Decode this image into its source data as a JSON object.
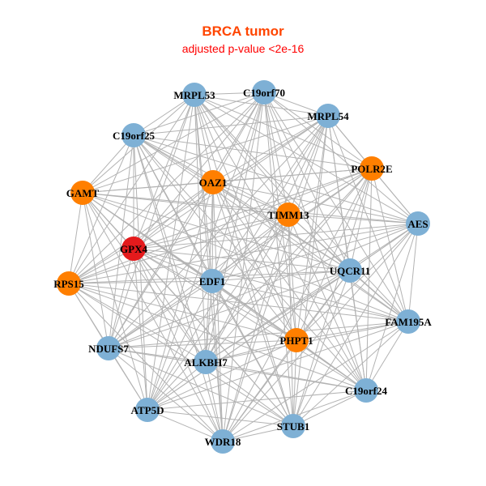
{
  "title": "BRCA tumor",
  "subtitle": "adjusted p-value <2e-16",
  "colors": {
    "title": "#FF4500",
    "subtitle": "#FF0000",
    "edge": "#B3B3B3",
    "blue": "#7EB0D5",
    "orange": "#FF7F00",
    "red": "#E41A1C"
  },
  "network": {
    "complete_graph": true,
    "nodes": [
      {
        "id": "MRPL53",
        "group": "blue"
      },
      {
        "id": "C19orf70",
        "group": "blue"
      },
      {
        "id": "MRPL54",
        "group": "blue"
      },
      {
        "id": "C19orf25",
        "group": "blue"
      },
      {
        "id": "POLR2E",
        "group": "orange"
      },
      {
        "id": "GAMT",
        "group": "orange"
      },
      {
        "id": "OAZ1",
        "group": "orange"
      },
      {
        "id": "TIMM13",
        "group": "orange"
      },
      {
        "id": "AES",
        "group": "blue"
      },
      {
        "id": "GPX4",
        "group": "red"
      },
      {
        "id": "RPS15",
        "group": "orange"
      },
      {
        "id": "EDF1",
        "group": "blue"
      },
      {
        "id": "UQCR11",
        "group": "blue"
      },
      {
        "id": "FAM195A",
        "group": "blue"
      },
      {
        "id": "NDUFS7",
        "group": "blue"
      },
      {
        "id": "PHPT1",
        "group": "orange"
      },
      {
        "id": "ALKBH7",
        "group": "blue"
      },
      {
        "id": "C19orf24",
        "group": "blue"
      },
      {
        "id": "ATP5D",
        "group": "blue"
      },
      {
        "id": "STUB1",
        "group": "blue"
      },
      {
        "id": "WDR18",
        "group": "blue"
      }
    ]
  }
}
